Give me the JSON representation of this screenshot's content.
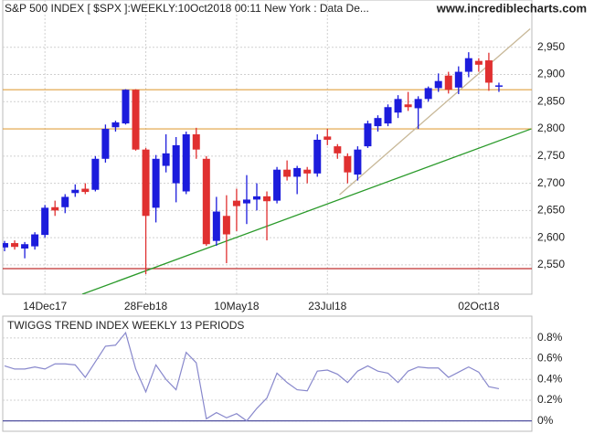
{
  "chart_data": [
    {
      "type": "candlestick",
      "title": "S&P 500 INDEX [ $SPX ]:WEEKLY:10Oct2018 00:11 New York : Data De...",
      "source": "www.incrediblecharts.com",
      "categories": [
        null,
        null,
        null,
        null,
        "14Dec17",
        null,
        null,
        null,
        null,
        null,
        null,
        null,
        null,
        null,
        "28Feb18",
        null,
        null,
        null,
        null,
        null,
        null,
        null,
        null,
        "10May18",
        null,
        null,
        null,
        null,
        null,
        null,
        null,
        null,
        "23Jul18",
        null,
        null,
        null,
        null,
        null,
        null,
        null,
        null,
        null,
        null,
        null,
        null,
        null,
        null,
        "02Oct18",
        null,
        null
      ],
      "open": [
        2582,
        2590,
        2580,
        2584,
        2605,
        2656,
        2656,
        2682,
        2690,
        2688,
        2745,
        2803,
        2810,
        2872,
        2762,
        2655,
        2732,
        2700,
        2685,
        2790,
        2745,
        2594,
        2640,
        2668,
        2663,
        2670,
        2676,
        2668,
        2725,
        2712,
        2725,
        2718,
        2786,
        2768,
        2750,
        2716,
        2768,
        2805,
        2810,
        2830,
        2845,
        2838,
        2855,
        2875,
        2898,
        2876,
        2905,
        2925,
        2926,
        2880
      ],
      "high": [
        2594,
        2595,
        2592,
        2610,
        2660,
        2668,
        2680,
        2698,
        2700,
        2750,
        2808,
        2815,
        2873,
        2873,
        2765,
        2752,
        2790,
        2785,
        2795,
        2802,
        2750,
        2675,
        2678,
        2690,
        2715,
        2700,
        2685,
        2730,
        2742,
        2732,
        2730,
        2790,
        2800,
        2772,
        2755,
        2768,
        2815,
        2825,
        2845,
        2862,
        2868,
        2860,
        2878,
        2902,
        2905,
        2915,
        2941,
        2930,
        2940,
        2885
      ],
      "low": [
        2575,
        2578,
        2562,
        2578,
        2600,
        2640,
        2645,
        2675,
        2680,
        2685,
        2738,
        2795,
        2808,
        2760,
        2533,
        2628,
        2720,
        2665,
        2680,
        2745,
        2585,
        2585,
        2553,
        2612,
        2625,
        2650,
        2595,
        2663,
        2705,
        2680,
        2700,
        2712,
        2770,
        2745,
        2700,
        2705,
        2765,
        2795,
        2805,
        2820,
        2833,
        2800,
        2850,
        2868,
        2865,
        2864,
        2895,
        2905,
        2870,
        2868
      ],
      "close": [
        2590,
        2583,
        2588,
        2606,
        2655,
        2650,
        2675,
        2688,
        2684,
        2745,
        2800,
        2812,
        2872,
        2762,
        2640,
        2745,
        2755,
        2770,
        2790,
        2762,
        2588,
        2648,
        2606,
        2658,
        2670,
        2676,
        2667,
        2725,
        2712,
        2728,
        2718,
        2780,
        2780,
        2755,
        2720,
        2762,
        2810,
        2820,
        2840,
        2855,
        2840,
        2855,
        2875,
        2888,
        2872,
        2905,
        2930,
        2918,
        2885,
        2880
      ],
      "up_color": "#1c1cdc",
      "down_color": "#e03030",
      "ylim": [
        2496,
        3037
      ],
      "yticks": [
        {
          "value": 2550,
          "label": "2,550"
        },
        {
          "value": 2600,
          "label": "2,600"
        },
        {
          "value": 2650,
          "label": "2,650"
        },
        {
          "value": 2700,
          "label": "2,700"
        },
        {
          "value": 2750,
          "label": "2,750"
        },
        {
          "value": 2800,
          "label": "2,800"
        },
        {
          "value": 2850,
          "label": "2,850"
        },
        {
          "value": 2900,
          "label": "2,900"
        },
        {
          "value": 2950,
          "label": "2,950"
        }
      ],
      "grid": true,
      "hlines": [
        {
          "value": 2872,
          "color": "#e0a040"
        },
        {
          "value": 2800,
          "color": "#e0a040"
        },
        {
          "value": 2543,
          "color": "#c03030"
        }
      ],
      "trendlines": [
        {
          "color": "#2a9a2a",
          "x": [
            7.7,
            52.2
          ],
          "y": [
            2496,
            2800
          ]
        },
        {
          "color": "#c8b898",
          "x": [
            33.2,
            52.1
          ],
          "y": [
            2679,
            2984
          ]
        }
      ]
    },
    {
      "type": "line",
      "title": "TWIGGS TREND INDEX WEEKLY 13 PERIODS",
      "values": [
        0.53,
        0.5,
        0.5,
        0.52,
        0.5,
        0.55,
        0.55,
        0.54,
        0.42,
        0.57,
        0.72,
        0.73,
        0.85,
        0.5,
        0.28,
        0.54,
        0.4,
        0.3,
        0.66,
        0.56,
        0.02,
        0.08,
        0.03,
        0.07,
        0,
        0.12,
        0.22,
        0.46,
        0.37,
        0.3,
        0.29,
        0.48,
        0.49,
        0.45,
        0.37,
        0.48,
        0.53,
        0.48,
        0.46,
        0.37,
        0.48,
        0.52,
        0.51,
        0.51,
        0.42,
        0.47,
        0.52,
        0.47,
        0.33,
        0.31
      ],
      "color": "#8888cc",
      "ylim": [
        -0.1,
        1.01
      ],
      "yticks": [
        {
          "value": 0,
          "label": "0%"
        },
        {
          "value": 0.2,
          "label": "0.2%"
        },
        {
          "value": 0.4,
          "label": "0.4%"
        },
        {
          "value": 0.6,
          "label": "0.6%"
        },
        {
          "value": 0.8,
          "label": "0.8%"
        }
      ],
      "grid": true
    }
  ]
}
